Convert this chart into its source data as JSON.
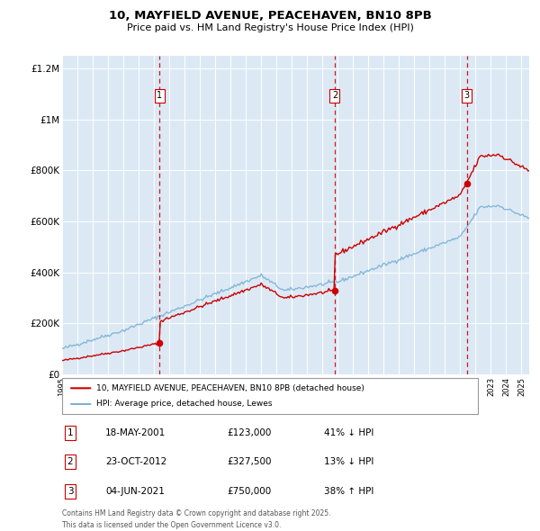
{
  "title": "10, MAYFIELD AVENUE, PEACEHAVEN, BN10 8PB",
  "subtitle": "Price paid vs. HM Land Registry's House Price Index (HPI)",
  "background_color": "white",
  "plot_bg_color": "#dce9f5",
  "red_line_color": "#cc0000",
  "blue_line_color": "#7ab3d4",
  "dashed_line_color": "#cc0000",
  "ylim": [
    0,
    1250000
  ],
  "yticks": [
    0,
    200000,
    400000,
    600000,
    800000,
    1000000,
    1200000
  ],
  "ytick_labels": [
    "£0",
    "£200K",
    "£400K",
    "£600K",
    "£800K",
    "£1M",
    "£1.2M"
  ],
  "sale_dates": [
    "18-MAY-2001",
    "23-OCT-2012",
    "04-JUN-2021"
  ],
  "sale_prices": [
    123000,
    327500,
    750000
  ],
  "sale_labels": [
    "1",
    "2",
    "3"
  ],
  "sale_years": [
    2001.37,
    2012.8,
    2021.42
  ],
  "legend_red": "10, MAYFIELD AVENUE, PEACEHAVEN, BN10 8PB (detached house)",
  "legend_blue": "HPI: Average price, detached house, Lewes",
  "table_rows": [
    [
      "1",
      "18-MAY-2001",
      "£123,000",
      "41% ↓ HPI"
    ],
    [
      "2",
      "23-OCT-2012",
      "£327,500",
      "13% ↓ HPI"
    ],
    [
      "3",
      "04-JUN-2021",
      "£750,000",
      "38% ↑ HPI"
    ]
  ],
  "footer": "Contains HM Land Registry data © Crown copyright and database right 2025.\nThis data is licensed under the Open Government Licence v3.0.",
  "xmin": 1995.0,
  "xmax": 2025.5
}
